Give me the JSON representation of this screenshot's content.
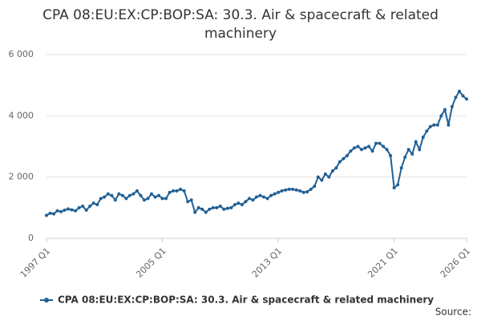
{
  "chart_data": {
    "type": "line",
    "title": "CPA 08:EU:EX:CP:BOP:SA: 30.3. Air & spacecraft & related machinery",
    "source": "Source:",
    "categories": [
      "1997 Q1",
      null,
      null,
      null,
      null,
      null,
      null,
      null,
      null,
      null,
      null,
      null,
      null,
      null,
      null,
      null,
      null,
      null,
      null,
      null,
      null,
      null,
      null,
      null,
      null,
      null,
      null,
      null,
      null,
      null,
      null,
      null,
      "2005 Q1",
      null,
      null,
      null,
      null,
      null,
      null,
      null,
      null,
      null,
      null,
      null,
      null,
      null,
      null,
      null,
      null,
      null,
      null,
      null,
      null,
      null,
      null,
      null,
      null,
      null,
      null,
      null,
      null,
      null,
      null,
      null,
      "2013 Q1",
      null,
      null,
      null,
      null,
      null,
      null,
      null,
      null,
      null,
      null,
      null,
      null,
      null,
      null,
      null,
      null,
      null,
      null,
      null,
      null,
      null,
      null,
      null,
      null,
      null,
      null,
      null,
      null,
      null,
      null,
      null,
      "2021 Q1",
      null,
      null,
      null,
      null,
      null,
      null,
      null,
      null,
      null,
      null,
      null,
      null,
      null,
      null,
      null,
      null,
      null,
      null,
      null,
      "2026 Q1"
    ],
    "series": [
      {
        "name": "CPA 08:EU:EX:CP:BOP:SA: 30.3. Air & spacecraft & related machinery",
        "color": "#206095",
        "values": [
          750,
          820,
          800,
          900,
          870,
          920,
          960,
          930,
          900,
          1000,
          1050,
          920,
          1050,
          1150,
          1100,
          1300,
          1350,
          1450,
          1400,
          1250,
          1450,
          1400,
          1300,
          1400,
          1450,
          1550,
          1400,
          1250,
          1300,
          1450,
          1350,
          1400,
          1300,
          1300,
          1500,
          1550,
          1550,
          1600,
          1550,
          1200,
          1250,
          850,
          1000,
          950,
          850,
          950,
          1000,
          1000,
          1050,
          950,
          980,
          1000,
          1100,
          1150,
          1100,
          1200,
          1300,
          1250,
          1350,
          1400,
          1350,
          1300,
          1400,
          1450,
          1500,
          1550,
          1580,
          1600,
          1600,
          1580,
          1550,
          1500,
          1520,
          1600,
          1700,
          2000,
          1900,
          2100,
          2000,
          2200,
          2300,
          2500,
          2600,
          2700,
          2850,
          2950,
          3000,
          2900,
          2950,
          3000,
          2850,
          3100,
          3100,
          3000,
          2900,
          2700,
          1650,
          1750,
          2300,
          2650,
          2900,
          2750,
          3150,
          2900,
          3300,
          3500,
          3650,
          3700,
          3700,
          4000,
          4200,
          3700,
          4300,
          4600,
          4800,
          4650,
          4550
        ]
      }
    ],
    "ylim": [
      0,
      6000
    ],
    "yticks": [
      0,
      {
        "value": 2000,
        "label": "2 000"
      },
      {
        "value": 4000,
        "label": "4 000"
      },
      {
        "value": 6000,
        "label": "6 000"
      }
    ],
    "grid": true
  }
}
